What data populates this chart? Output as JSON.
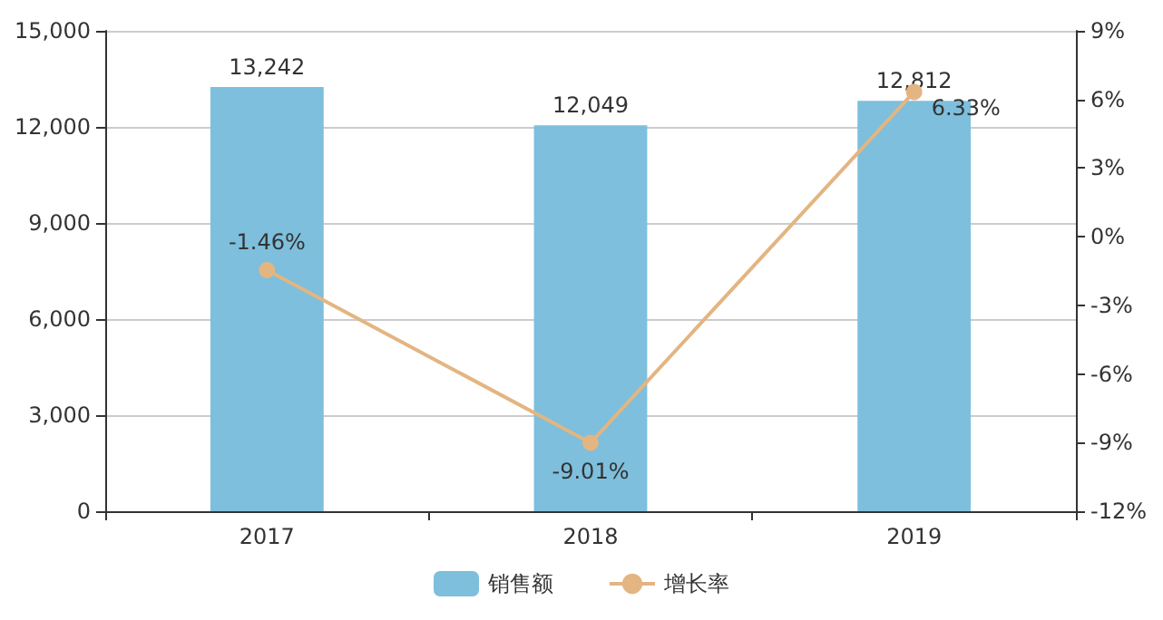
{
  "chart_data": {
    "type": "bar",
    "categories": [
      "2017",
      "2018",
      "2019"
    ],
    "series": [
      {
        "name": "销售额",
        "color": "#7dbfdc",
        "values": [
          13242,
          12049,
          12812
        ],
        "value_labels": [
          "13,242",
          "12,049",
          "12,812"
        ]
      },
      {
        "name": "增长率",
        "type": "line",
        "axis": "y2",
        "color": "#e3b582",
        "values": [
          -1.46,
          -9.01,
          6.33
        ],
        "value_labels": [
          "-1.46%",
          "-9.01%",
          "6.33%"
        ]
      }
    ],
    "ylim": [
      0,
      15000
    ],
    "yticks": [
      {
        "value": 0,
        "label": "0"
      },
      {
        "value": 3000,
        "label": "3,000"
      },
      {
        "value": 6000,
        "label": "6,000"
      },
      {
        "value": 9000,
        "label": "9,000"
      },
      {
        "value": 12000,
        "label": "12,000"
      },
      {
        "value": 15000,
        "label": "15,000"
      }
    ],
    "y2lim": [
      -12,
      9
    ],
    "y2ticks": [
      {
        "value": -12,
        "label": "-12%"
      },
      {
        "value": -9,
        "label": "-9%"
      },
      {
        "value": -6,
        "label": "-6%"
      },
      {
        "value": -3,
        "label": "-3%"
      },
      {
        "value": 0,
        "label": "0%"
      },
      {
        "value": 3,
        "label": "3%"
      },
      {
        "value": 6,
        "label": "6%"
      },
      {
        "value": 9,
        "label": "9%"
      }
    ],
    "grid": "y",
    "legend": "bottom",
    "marker": "circle",
    "line_style": "solid"
  }
}
